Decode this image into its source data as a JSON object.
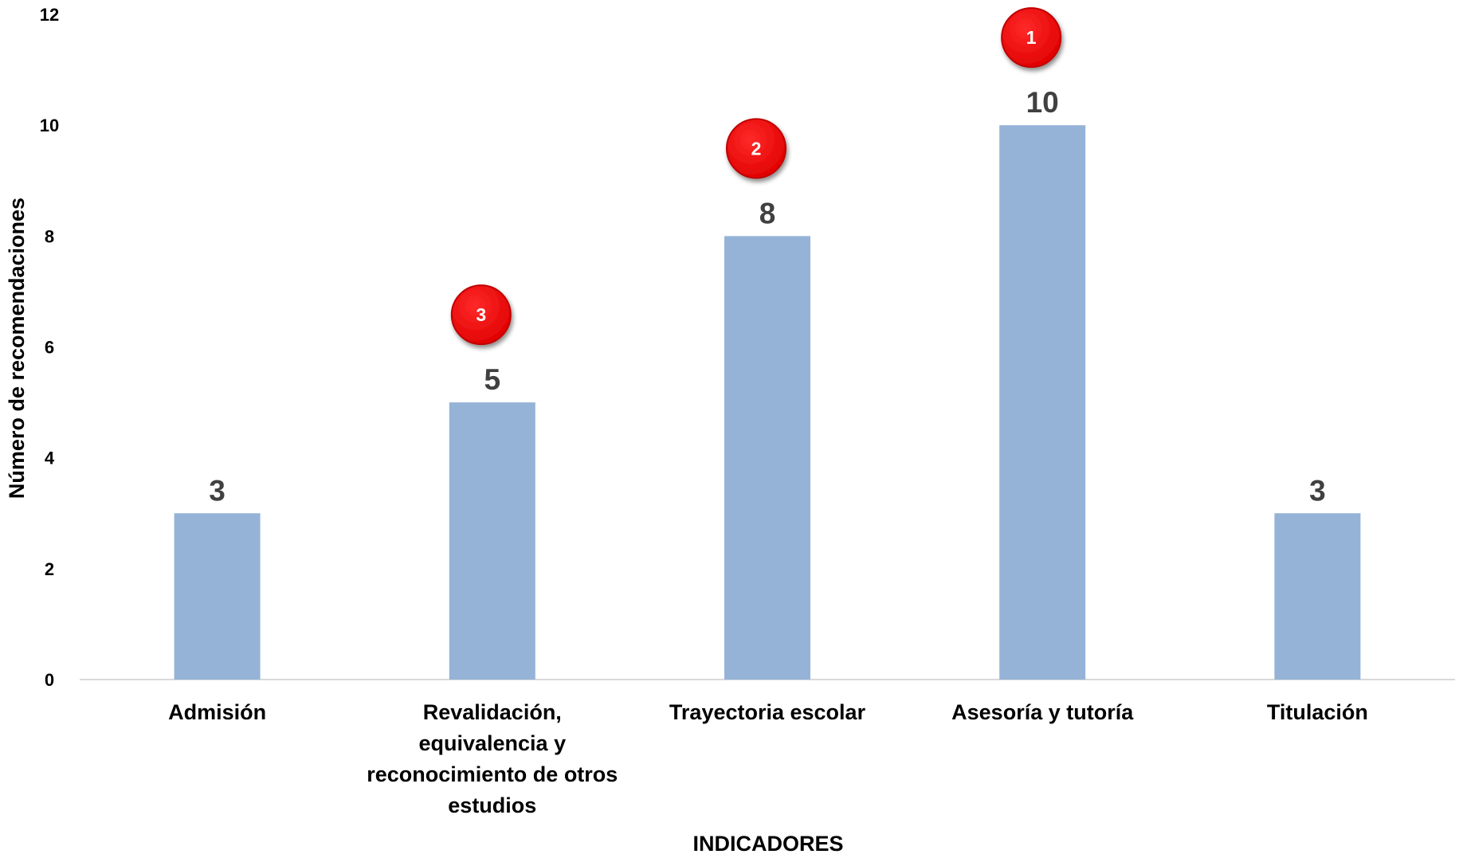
{
  "chart_data": {
    "type": "bar",
    "categories": [
      [
        "Admisión"
      ],
      [
        "Revalidación,",
        "equivalencia y",
        "reconocimiento de otros",
        "estudios"
      ],
      [
        "Trayectoria escolar"
      ],
      [
        "Asesoría y tutoría"
      ],
      [
        "Titulación"
      ]
    ],
    "values": [
      3,
      5,
      8,
      10,
      3
    ],
    "data_labels": [
      "3",
      "5",
      "8",
      "10",
      "3"
    ],
    "ranks": [
      null,
      "3",
      "2",
      "1",
      null
    ],
    "xlabel": "INDICADORES",
    "ylabel": "Número de recomendaciones",
    "ylim": [
      0,
      12
    ],
    "yticks": [
      0,
      2,
      4,
      6,
      8,
      10,
      12
    ],
    "grid": false,
    "legend": "none",
    "colors": {
      "bar": "#95B3D7",
      "rank_badge": "#FF0000",
      "rank_badge_edge": "#C00000",
      "value_label": "#404040",
      "axis_line": "#D9D9D9"
    }
  }
}
